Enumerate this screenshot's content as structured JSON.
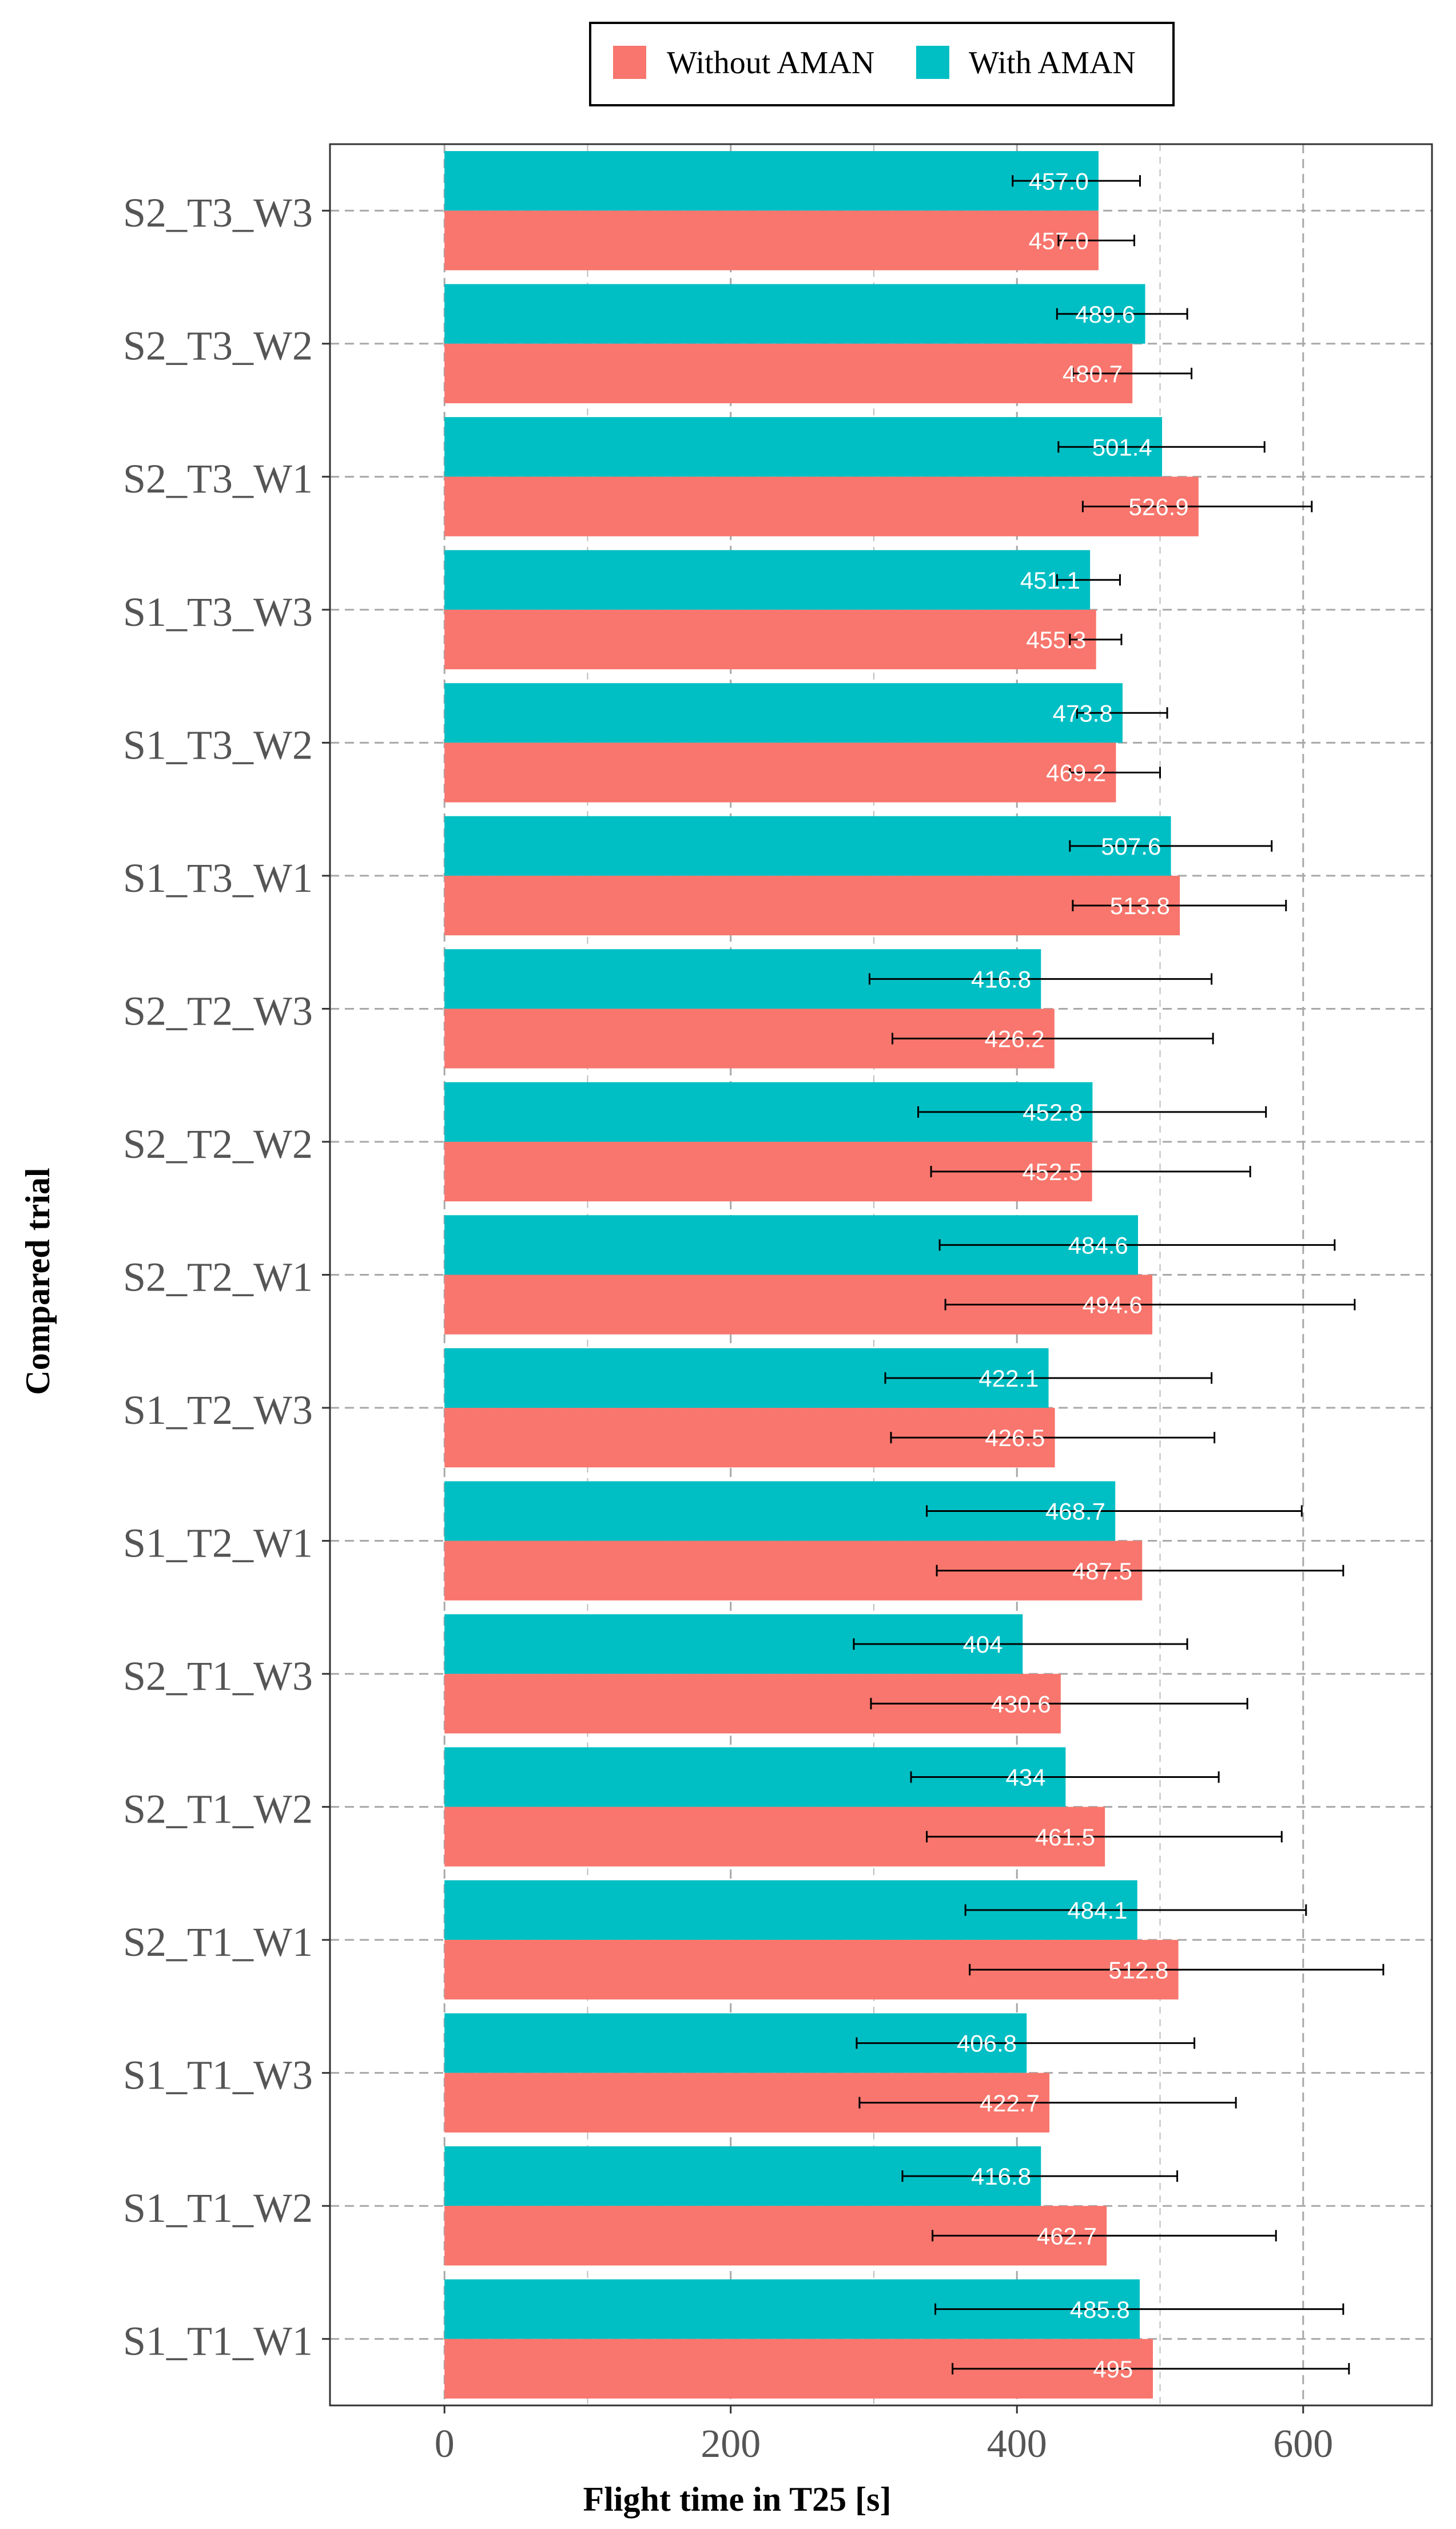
{
  "chart_data": {
    "type": "bar",
    "orientation": "horizontal",
    "title": "",
    "xlabel": "Flight time in T25 [s]",
    "ylabel": "Compared trial",
    "xlim": [
      -80,
      690
    ],
    "xticks": [
      0,
      200,
      400,
      600
    ],
    "grid": true,
    "legend_position": "top",
    "categories": [
      "S2_T3_W3",
      "S2_T3_W2",
      "S2_T3_W1",
      "S1_T3_W3",
      "S1_T3_W2",
      "S1_T3_W1",
      "S2_T2_W3",
      "S2_T2_W2",
      "S2_T2_W1",
      "S1_T2_W3",
      "S1_T2_W1",
      "S2_T1_W3",
      "S2_T1_W2",
      "S2_T1_W1",
      "S1_T1_W3",
      "S1_T1_W2",
      "S1_T1_W1"
    ],
    "series": [
      {
        "name": "With AMAN",
        "color": "#00BFC4",
        "values": [
          457.0,
          489.6,
          501.4,
          451.1,
          473.8,
          507.6,
          416.8,
          452.8,
          484.6,
          422.1,
          468.7,
          404,
          434,
          484.1,
          406.8,
          416.8,
          485.8
        ],
        "value_labels": [
          "457.0",
          "489.6",
          "501.4",
          "451.1",
          "473.8",
          "507.6",
          "416.8",
          "452.8",
          "484.6",
          "422.1",
          "468.7",
          "404",
          "434",
          "484.1",
          "406.8",
          "416.8",
          "485.8"
        ],
        "error_low": [
          397,
          428,
          429,
          428,
          442,
          437,
          297,
          331,
          346,
          308,
          337,
          286,
          326,
          364,
          288,
          320,
          343
        ],
        "error_high": [
          486,
          519,
          573,
          472,
          505,
          578,
          536,
          574,
          622,
          536,
          599,
          519,
          541,
          602,
          524,
          512,
          628
        ]
      },
      {
        "name": "Without AMAN",
        "color": "#F8766D",
        "values": [
          457.0,
          480.7,
          526.9,
          455.3,
          469.2,
          513.8,
          426.2,
          452.5,
          494.6,
          426.5,
          487.5,
          430.6,
          461.5,
          512.8,
          422.7,
          462.7,
          495
        ],
        "value_labels": [
          "457.0",
          "480.7",
          "526.9",
          "455.3",
          "469.2",
          "513.8",
          "426.2",
          "452.5",
          "494.6",
          "426.5",
          "487.5",
          "430.6",
          "461.5",
          "512.8",
          "422.7",
          "462.7",
          "495"
        ],
        "error_low": [
          429,
          439,
          446,
          437,
          437,
          439,
          313,
          340,
          350,
          312,
          344,
          298,
          337,
          367,
          290,
          341,
          355
        ],
        "error_high": [
          482,
          522,
          606,
          473,
          500,
          588,
          537,
          563,
          636,
          538,
          628,
          561,
          585,
          656,
          553,
          581,
          632
        ]
      }
    ]
  }
}
